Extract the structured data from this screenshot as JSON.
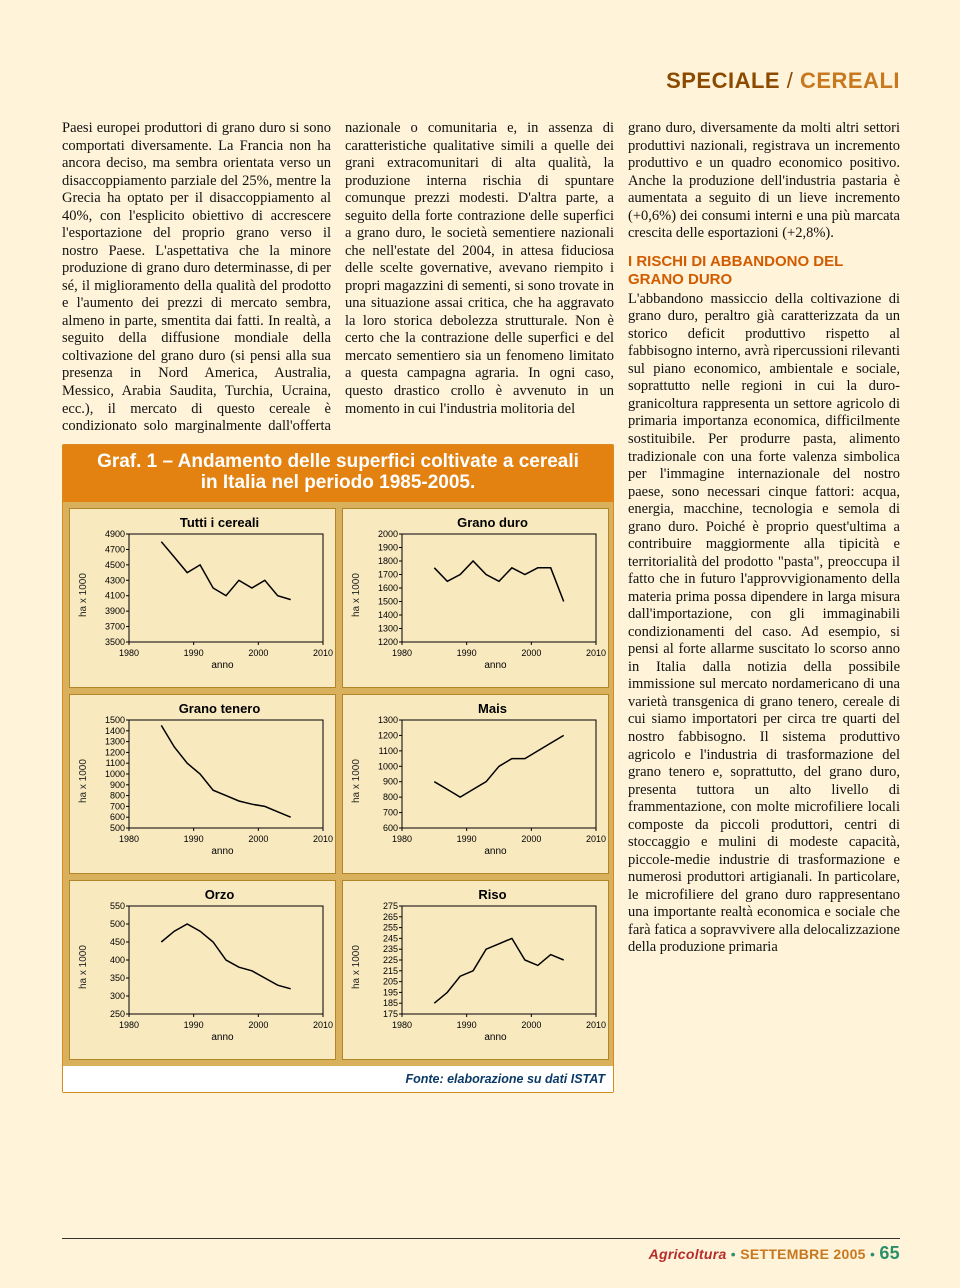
{
  "rubric": {
    "a": "SPECIALE",
    "sep": " / ",
    "b": "CEREALI"
  },
  "text": {
    "left": "Paesi europei produttori di grano duro si sono comportati diversamente. La Francia non ha ancora deciso, ma sembra orientata verso un disaccoppiamento parziale del 25%, mentre la Grecia ha optato per il disaccoppiamento al 40%, con l'esplicito obiettivo di accrescere l'esportazione del proprio grano verso il nostro Paese. L'aspettativa che la minore produzione di grano duro determinasse, di per sé, il miglioramento della qualità del prodotto e l'aumento dei prezzi di mercato sembra, almeno in parte, smentita dai fatti. In realtà, a seguito della diffusione mondiale della coltivazione del grano duro (si pensi alla sua presenza in Nord America, Australia, Messico, Arabia Saudita, Turchia, Ucraina, ecc.), il mercato di questo cereale è condizionato solo marginalmente dall'offerta nazionale o comunitaria e, in assenza di caratteristiche qualitative simili a quelle dei grani extracomunitari di alta qualità, la produzione interna rischia di spuntare comunque prezzi modesti. D'altra parte, a seguito della forte contrazione delle superfici a grano duro, le società sementiere nazionali che nell'estate del 2004, in attesa fiduciosa delle scelte governative, avevano riempito i propri magazzini di sementi, si sono trovate in una situazione assai critica, che ha aggravato la loro storica debolezza strutturale. Non è certo che la contrazione delle superfici e del mercato sementiero sia un fenomeno limitato a questa campagna agraria. In ogni caso, questo drastico crollo è avvenuto in un momento in cui l'industria molitoria del",
    "right_a": "grano duro, diversamente da molti altri settori produttivi nazionali, registrava un incremento produttivo e un quadro economico positivo. Anche la produzione dell'industria pastaria è aumentata a seguito di un lieve incremento (+0,6%) dei consumi interni e una più marcata crescita delle esportazioni (+2,8%).",
    "subhead": "I RISCHI DI ABBANDONO DEL GRANO DURO",
    "right_b": "L'abbandono massiccio della coltivazione di grano duro, peraltro già caratterizzata da un storico deficit produttivo rispetto al fabbisogno interno, avrà ripercussioni rilevanti sul piano economico, ambientale e sociale, soprattutto nelle regioni in cui la duro-granicoltura rappresenta un settore agricolo di primaria importanza economica, difficilmente sostituibile. Per produrre pasta, alimento tradizionale con una forte valenza simbolica per l'immagine internazionale del nostro paese, sono necessari cinque fattori: acqua, energia, macchine, tecnologia e semola di grano duro. Poiché è proprio quest'ultima a contribuire maggiormente alla tipicità e territorialità del prodotto \"pasta\", preoccupa il fatto che in futuro l'approvvigionamento della materia prima possa dipendere in larga misura dall'importazione, con gli immaginabili condizionamenti del caso. Ad esempio, si pensi al forte allarme suscitato lo scorso anno in Italia dalla notizia della possibile immissione sul mercato nordamericano di una varietà transgenica di grano tenero, cereale di cui siamo importatori per circa tre quarti del nostro fabbisogno. Il sistema produttivo agricolo e l'industria di trasformazione del grano tenero e, soprattutto, del grano duro, presenta tuttora un alto livello di frammentazione, con molte microfiliere locali composte da piccoli produttori, centri di stoccaggio e mulini di modeste capacità, piccole-medie industrie di trasformazione e numerosi produttori artigianali. In particolare, le microfiliere del grano duro rappresentano una importante realtà economica e sociale che farà fatica a sopravvivere alla delocalizzazione della produzione primaria"
  },
  "chart": {
    "title_l1": "Graf. 1 – Andamento delle superfici coltivate a cereali",
    "title_l2": "in Italia nel periodo 1985-2005.",
    "source": "Fonte: elaborazione su dati ISTAT",
    "xlabel": "anno",
    "ylabel": "ha x 1000",
    "xlim": [
      1980,
      2010
    ],
    "xticks": [
      1980,
      1990,
      2000,
      2010
    ],
    "line_color": "#000000",
    "axis_color": "#000000",
    "panel_bg": "#f8e9bf",
    "grid_bg": "#d9b05b",
    "panels": [
      {
        "title": "Tutti i cereali",
        "yticks": [
          3500,
          3700,
          3900,
          4100,
          4300,
          4500,
          4700,
          4900
        ],
        "series": [
          [
            1985,
            4800
          ],
          [
            1987,
            4600
          ],
          [
            1989,
            4400
          ],
          [
            1991,
            4500
          ],
          [
            1993,
            4200
          ],
          [
            1995,
            4100
          ],
          [
            1997,
            4300
          ],
          [
            1999,
            4200
          ],
          [
            2001,
            4300
          ],
          [
            2003,
            4100
          ],
          [
            2005,
            4050
          ]
        ]
      },
      {
        "title": "Grano duro",
        "yticks": [
          1200,
          1300,
          1400,
          1500,
          1600,
          1700,
          1800,
          1900,
          2000
        ],
        "series": [
          [
            1985,
            1750
          ],
          [
            1987,
            1650
          ],
          [
            1989,
            1700
          ],
          [
            1991,
            1800
          ],
          [
            1993,
            1700
          ],
          [
            1995,
            1650
          ],
          [
            1997,
            1750
          ],
          [
            1999,
            1700
          ],
          [
            2001,
            1750
          ],
          [
            2003,
            1750
          ],
          [
            2005,
            1500
          ]
        ]
      },
      {
        "title": "Grano tenero",
        "yticks": [
          500,
          600,
          700,
          800,
          900,
          1000,
          1100,
          1200,
          1300,
          1400,
          1500
        ],
        "series": [
          [
            1985,
            1450
          ],
          [
            1987,
            1250
          ],
          [
            1989,
            1100
          ],
          [
            1991,
            1000
          ],
          [
            1993,
            850
          ],
          [
            1995,
            800
          ],
          [
            1997,
            750
          ],
          [
            1999,
            720
          ],
          [
            2001,
            700
          ],
          [
            2003,
            650
          ],
          [
            2005,
            600
          ]
        ]
      },
      {
        "title": "Mais",
        "yticks": [
          600,
          700,
          800,
          900,
          1000,
          1100,
          1200,
          1300
        ],
        "series": [
          [
            1985,
            900
          ],
          [
            1987,
            850
          ],
          [
            1989,
            800
          ],
          [
            1991,
            850
          ],
          [
            1993,
            900
          ],
          [
            1995,
            1000
          ],
          [
            1997,
            1050
          ],
          [
            1999,
            1050
          ],
          [
            2001,
            1100
          ],
          [
            2003,
            1150
          ],
          [
            2005,
            1200
          ]
        ]
      },
      {
        "title": "Orzo",
        "yticks": [
          250,
          300,
          350,
          400,
          450,
          500,
          550
        ],
        "series": [
          [
            1985,
            450
          ],
          [
            1987,
            480
          ],
          [
            1989,
            500
          ],
          [
            1991,
            480
          ],
          [
            1993,
            450
          ],
          [
            1995,
            400
          ],
          [
            1997,
            380
          ],
          [
            1999,
            370
          ],
          [
            2001,
            350
          ],
          [
            2003,
            330
          ],
          [
            2005,
            320
          ]
        ]
      },
      {
        "title": "Riso",
        "yticks": [
          175,
          185,
          195,
          205,
          215,
          225,
          235,
          245,
          255,
          265,
          275
        ],
        "series": [
          [
            1985,
            185
          ],
          [
            1987,
            195
          ],
          [
            1989,
            210
          ],
          [
            1991,
            215
          ],
          [
            1993,
            235
          ],
          [
            1995,
            240
          ],
          [
            1997,
            245
          ],
          [
            1999,
            225
          ],
          [
            2001,
            220
          ],
          [
            2003,
            230
          ],
          [
            2005,
            225
          ]
        ]
      }
    ]
  },
  "footer": {
    "mag": "Agricoltura",
    "dot": "•",
    "issue": "SETTEMBRE 2005",
    "page": "65"
  }
}
